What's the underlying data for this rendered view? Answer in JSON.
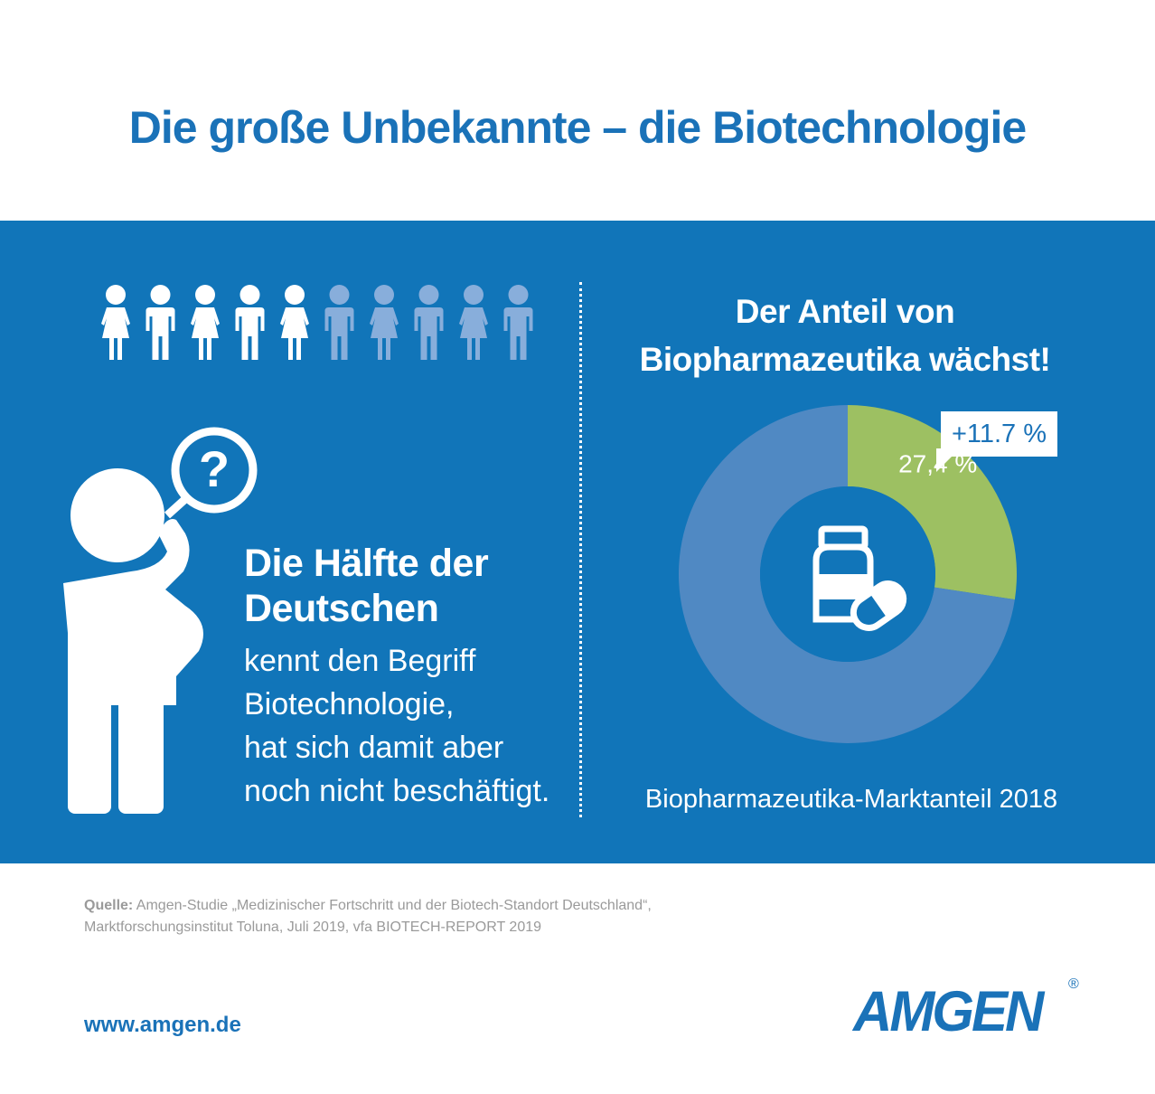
{
  "title": "Die große Unbekannte – die Biotechnologie",
  "colors": {
    "brand_blue": "#1a72b8",
    "panel_blue": "#1175b9",
    "donut_rest": "#5089c3",
    "donut_highlight": "#9dc062",
    "person_light": "#ffffff",
    "person_dim": "#88aedb"
  },
  "left": {
    "people_highlighted": 5,
    "people_total": 10,
    "icon": "person-question-icon",
    "stat_bold_line1": "Die Hälfte der",
    "stat_bold_line2": "Deutschen",
    "stat_line1": "kennt den Begriff",
    "stat_line2": "Biotechnologie,",
    "stat_line3": "hat sich damit aber",
    "stat_line4": "noch nicht beschäftigt."
  },
  "right": {
    "title_line1": "Der Anteil von",
    "title_line2": "Biopharmazeutika wächst!",
    "growth_label": "+11.7 %",
    "center_icon": "medicine-bottle-pill-icon",
    "caption": "Biopharmazeutika-Marktanteil 2018"
  },
  "chart_data": {
    "type": "pie",
    "donut": true,
    "slices": [
      {
        "label": "27,4 %",
        "value": 27.4,
        "color": "#9dc062"
      },
      {
        "label": "",
        "value": 72.6,
        "color": "#5089c3"
      }
    ],
    "annotation": "+11.7 %",
    "caption": "Biopharmazeutika-Marktanteil 2018"
  },
  "footer": {
    "source_label": "Quelle:",
    "source_line1": " Amgen-Studie „Medizinischer Fortschritt und der Biotech-Standort Deutschland“,",
    "source_line2": "Marktforschungsinstitut Toluna, Juli 2019, vfa BIOTECH-REPORT 2019",
    "url": "www.amgen.de",
    "logo_text": "AMGEN",
    "logo_mark": "®"
  }
}
